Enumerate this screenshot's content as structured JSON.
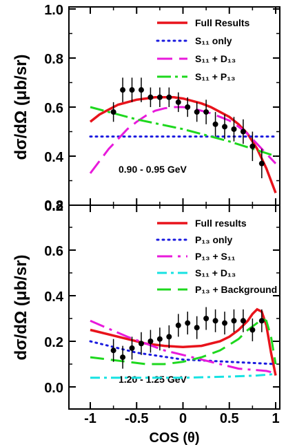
{
  "chart_data": [
    {
      "type": "line",
      "panel": "top",
      "xlim": [
        -1.1,
        1.05
      ],
      "ylim": [
        0.2,
        1.0
      ],
      "yticks": [
        "0.2",
        "0.4",
        "0.6",
        "0.8",
        "1.0"
      ],
      "energy_label": "0.90 - 0.95 GeV",
      "legend": [
        "Full Results",
        "S₁₁ only",
        "S₁₁ + D₁₃",
        "S₁₁ + P₁₃"
      ],
      "data_points": {
        "x": [
          -0.75,
          -0.65,
          -0.55,
          -0.45,
          -0.35,
          -0.25,
          -0.15,
          -0.05,
          0.05,
          0.15,
          0.25,
          0.35,
          0.45,
          0.55,
          0.65,
          0.75,
          0.85
        ],
        "y": [
          0.58,
          0.67,
          0.67,
          0.67,
          0.64,
          0.64,
          0.64,
          0.62,
          0.6,
          0.58,
          0.58,
          0.53,
          0.52,
          0.51,
          0.5,
          0.44,
          0.37
        ],
        "err": [
          0.04,
          0.05,
          0.05,
          0.05,
          0.04,
          0.04,
          0.04,
          0.04,
          0.04,
          0.04,
          0.05,
          0.05,
          0.05,
          0.05,
          0.05,
          0.06,
          0.06
        ]
      },
      "series": [
        {
          "name": "Full Results",
          "color": "#e8131b",
          "x": [
            -1.0,
            -0.9,
            -0.8,
            -0.7,
            -0.6,
            -0.5,
            -0.4,
            -0.3,
            -0.2,
            -0.1,
            0.0,
            0.1,
            0.2,
            0.3,
            0.4,
            0.5,
            0.6,
            0.7,
            0.8,
            0.9,
            1.0
          ],
          "y": [
            0.54,
            0.57,
            0.59,
            0.61,
            0.62,
            0.63,
            0.635,
            0.64,
            0.64,
            0.64,
            0.635,
            0.625,
            0.615,
            0.6,
            0.58,
            0.56,
            0.53,
            0.49,
            0.43,
            0.35,
            0.25
          ]
        },
        {
          "name": "S₁₁ only",
          "color": "#1a1adf",
          "x": [
            -1.0,
            1.0
          ],
          "y": [
            0.48,
            0.48
          ]
        },
        {
          "name": "S₁₁ + D₁₃",
          "color": "#e81adb",
          "x": [
            -1.0,
            -0.9,
            -0.8,
            -0.7,
            -0.6,
            -0.5,
            -0.4,
            -0.3,
            -0.2,
            -0.1,
            0.0,
            0.1,
            0.2,
            0.3,
            0.4,
            0.5,
            0.6,
            0.7,
            0.8,
            0.9,
            1.0
          ],
          "y": [
            0.33,
            0.38,
            0.43,
            0.47,
            0.51,
            0.54,
            0.565,
            0.585,
            0.595,
            0.6,
            0.6,
            0.595,
            0.585,
            0.575,
            0.56,
            0.545,
            0.52,
            0.49,
            0.45,
            0.41,
            0.37
          ]
        },
        {
          "name": "S₁₁ + P₁₃",
          "color": "#1ed81e",
          "x": [
            -1.0,
            -0.5,
            0.0,
            0.5,
            1.0
          ],
          "y": [
            0.6,
            0.55,
            0.51,
            0.46,
            0.4
          ]
        }
      ]
    },
    {
      "type": "line",
      "panel": "bottom",
      "xlim": [
        -1.1,
        1.05
      ],
      "ylim": [
        -0.12,
        1.0
      ],
      "yticks": [
        "0.0",
        "0.2",
        "0.4",
        "0.6",
        "0.8"
      ],
      "xticks": [
        "-1",
        "-0.5",
        "0",
        "0.5",
        "1"
      ],
      "xlabel": "COS (θ)",
      "ylabel": "dσ/dΩ (μb/sr)",
      "energy_label": "1.20 - 1.25 GeV",
      "legend": [
        "Full results",
        "P₁₃ only",
        "P₁₃ + S₁₁",
        "S₁₁ + D₁₃",
        "P₁₃ + Background"
      ],
      "data_points": {
        "x": [
          -0.75,
          -0.65,
          -0.55,
          -0.45,
          -0.35,
          -0.25,
          -0.15,
          -0.05,
          0.05,
          0.15,
          0.25,
          0.35,
          0.45,
          0.55,
          0.65,
          0.75,
          0.85
        ],
        "y": [
          0.16,
          0.13,
          0.17,
          0.19,
          0.2,
          0.21,
          0.22,
          0.27,
          0.28,
          0.26,
          0.3,
          0.29,
          0.28,
          0.29,
          0.29,
          0.25,
          0.29
        ],
        "err": [
          0.05,
          0.05,
          0.05,
          0.05,
          0.05,
          0.05,
          0.05,
          0.05,
          0.05,
          0.05,
          0.05,
          0.05,
          0.05,
          0.05,
          0.05,
          0.05,
          0.05
        ]
      },
      "series": [
        {
          "name": "Full results",
          "color": "#e8131b",
          "x": [
            -1.0,
            -0.8,
            -0.6,
            -0.4,
            -0.2,
            0.0,
            0.2,
            0.4,
            0.5,
            0.6,
            0.7,
            0.75,
            0.8,
            0.85,
            0.9,
            0.95,
            1.0
          ],
          "y": [
            0.25,
            0.23,
            0.21,
            0.19,
            0.18,
            0.175,
            0.18,
            0.2,
            0.22,
            0.25,
            0.29,
            0.32,
            0.34,
            0.33,
            0.27,
            0.15,
            0.05
          ]
        },
        {
          "name": "P₁₃ only",
          "color": "#1a1adf",
          "x": [
            -1.0,
            -0.5,
            0.0,
            0.5,
            1.0
          ],
          "y": [
            0.2,
            0.15,
            0.12,
            0.11,
            0.1
          ]
        },
        {
          "name": "P₁₃ + S₁₁",
          "color": "#e81adb",
          "x": [
            -1.0,
            -0.6,
            -0.2,
            0.2,
            0.6,
            0.9,
            1.0
          ],
          "y": [
            0.29,
            0.22,
            0.16,
            0.12,
            0.08,
            0.07,
            0.06
          ]
        },
        {
          "name": "S₁₁ + D₁₃",
          "color": "#17e2e2",
          "x": [
            -1.0,
            -0.5,
            0.0,
            0.5,
            0.8,
            0.95,
            1.0
          ],
          "y": [
            0.04,
            0.04,
            0.04,
            0.045,
            0.05,
            0.055,
            0.06
          ]
        },
        {
          "name": "P₁₃ + Background",
          "color": "#1ed81e",
          "x": [
            -1.0,
            -0.8,
            -0.6,
            -0.4,
            -0.2,
            0.0,
            0.2,
            0.4,
            0.6,
            0.7,
            0.8,
            0.85,
            0.9,
            0.95,
            1.0
          ],
          "y": [
            0.13,
            0.12,
            0.11,
            0.1,
            0.1,
            0.11,
            0.13,
            0.16,
            0.21,
            0.25,
            0.28,
            0.3,
            0.29,
            0.22,
            0.1
          ]
        }
      ]
    }
  ]
}
